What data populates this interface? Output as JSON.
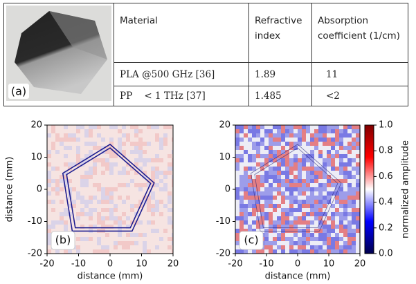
{
  "photo": {
    "label": "(a)"
  },
  "table": {
    "header": [
      "Material",
      "Refractive index",
      "Absorption coefficient (1/cm)"
    ],
    "rows": [
      [
        "PLA @500 GHz [36]",
        "1.89",
        "11"
      ],
      [
        "PP    < 1 THz [37]",
        "1.485",
        "<2"
      ]
    ]
  },
  "panels": [
    {
      "label": "(b)",
      "xlabel": "distance (mm)",
      "ylabel": "distance (mm)",
      "xlim": [
        -20,
        20
      ],
      "ylim": [
        -20,
        20
      ],
      "xticks": [
        -20,
        -10,
        0,
        10,
        20
      ],
      "yticks": [
        -20,
        -10,
        0,
        10,
        20
      ]
    },
    {
      "label": "(c)",
      "xlabel": "distance (mm)",
      "xlim": [
        -20,
        20
      ],
      "ylim": [
        -20,
        20
      ],
      "xticks": [
        -20,
        -10,
        0,
        10,
        20
      ],
      "yticks": [
        -20,
        -10,
        0,
        10,
        20
      ]
    }
  ],
  "colorbar": {
    "label": "normalized amplitude",
    "lim": [
      0,
      1
    ],
    "ticks": [
      {
        "value": 0,
        "label": "0.0"
      },
      0.2,
      0.4,
      0.6,
      0.8,
      {
        "value": 1,
        "label": "1.0"
      }
    ]
  }
}
